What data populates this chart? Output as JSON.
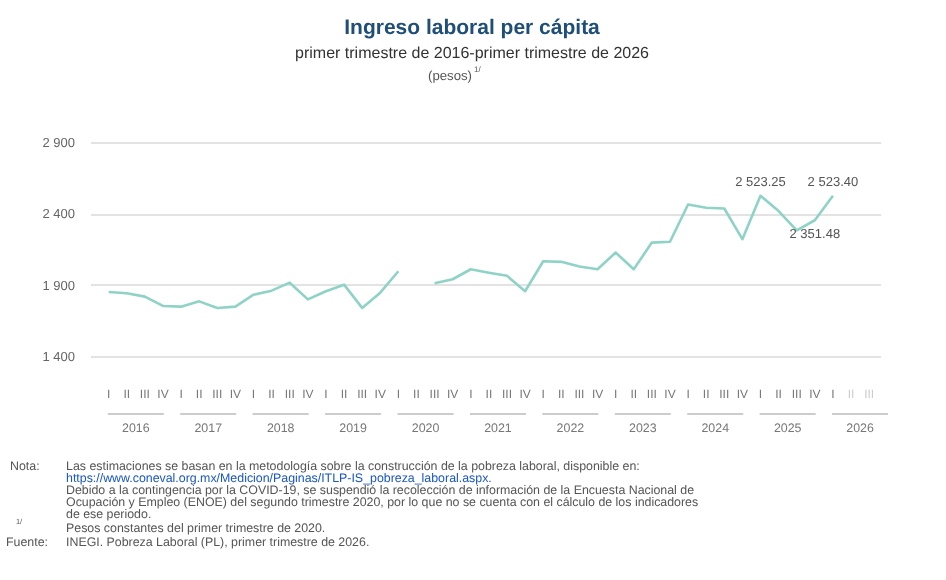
{
  "chart_data": {
    "type": "line",
    "title": "Ingreso laboral per cápita",
    "subtitle": "primer trimestre de 2016-primer trimestre de 2026",
    "categories": [
      "I",
      "II",
      "III",
      "IV",
      "I",
      "II",
      "III",
      "IV",
      "I",
      "II",
      "III",
      "IV",
      "I",
      "II",
      "III",
      "IV",
      "I",
      "II",
      "III",
      "IV",
      "I",
      "II",
      "III",
      "IV",
      "I",
      "II",
      "III",
      "IV",
      "I",
      "II",
      "III",
      "IV",
      "I",
      "II",
      "III",
      "IV",
      "I",
      "II",
      "III",
      "IV",
      "I",
      "II",
      "III"
    ],
    "series": [
      {
        "color": "#8fd3c6",
        "values": [
          1849,
          1840,
          1816,
          1751,
          1746,
          1783,
          1737,
          1746,
          1830,
          1858,
          1914,
          1797,
          1854,
          1900,
          1737,
          1844,
          1994,
          null,
          1910,
          1938,
          2008,
          1984,
          1962,
          1854,
          2064,
          2060,
          2027,
          2008,
          2125,
          2008,
          2195,
          2201,
          2462,
          2439,
          2434,
          2219,
          2523.25,
          2416,
          2280,
          2351.48,
          2523.4,
          null,
          null
        ],
        "value_labels": [
          null,
          null,
          null,
          null,
          null,
          null,
          null,
          null,
          null,
          null,
          null,
          null,
          null,
          null,
          null,
          null,
          null,
          null,
          null,
          null,
          null,
          null,
          null,
          null,
          null,
          null,
          null,
          null,
          null,
          null,
          null,
          null,
          null,
          null,
          null,
          null,
          "2 523.25",
          null,
          null,
          "2 351.48",
          "2 523.40",
          null,
          null
        ]
      }
    ],
    "ylim": [
      1400,
      2900
    ],
    "yticks": [
      {
        "value": 1400,
        "label": "1 400"
      },
      {
        "value": 1900,
        "label": "1 900"
      },
      {
        "value": 2400,
        "label": "2 400"
      },
      {
        "value": 2900,
        "label": "2 900"
      }
    ],
    "grid": "y",
    "marker": "none",
    "line_style": "solid",
    "annotations": [
      "2016",
      "2017",
      "2018",
      "2019",
      "2020",
      "2021",
      "2022",
      "2023",
      "2024",
      "2025",
      "2026",
      "(pesos)$^{1/}$",
      "Nota:",
      "Las estimaciones se basan en la metodología sobre la construcción de la pobreza laboral, disponible en:",
      "https://www.coneval.org.mx/Medicion/Paginas/ITLP-IS_pobreza_laboral.aspx.",
      "Debido a la contingencia por la COVID-19, se suspendió la recolección de información de la Encuesta Nacional de",
      "Ocupación y Empleo (ENOE) del segundo trimestre 2020, por lo que no se cuenta con el cálculo de los indicadores",
      "de ese periodo.",
      "$^{1/}$Pesos constantes del primer trimestre de 2020.",
      "Fuente:",
      "INEGI. Pobreza Laboral (PL), primer trimestre de 2026."
    ]
  }
}
